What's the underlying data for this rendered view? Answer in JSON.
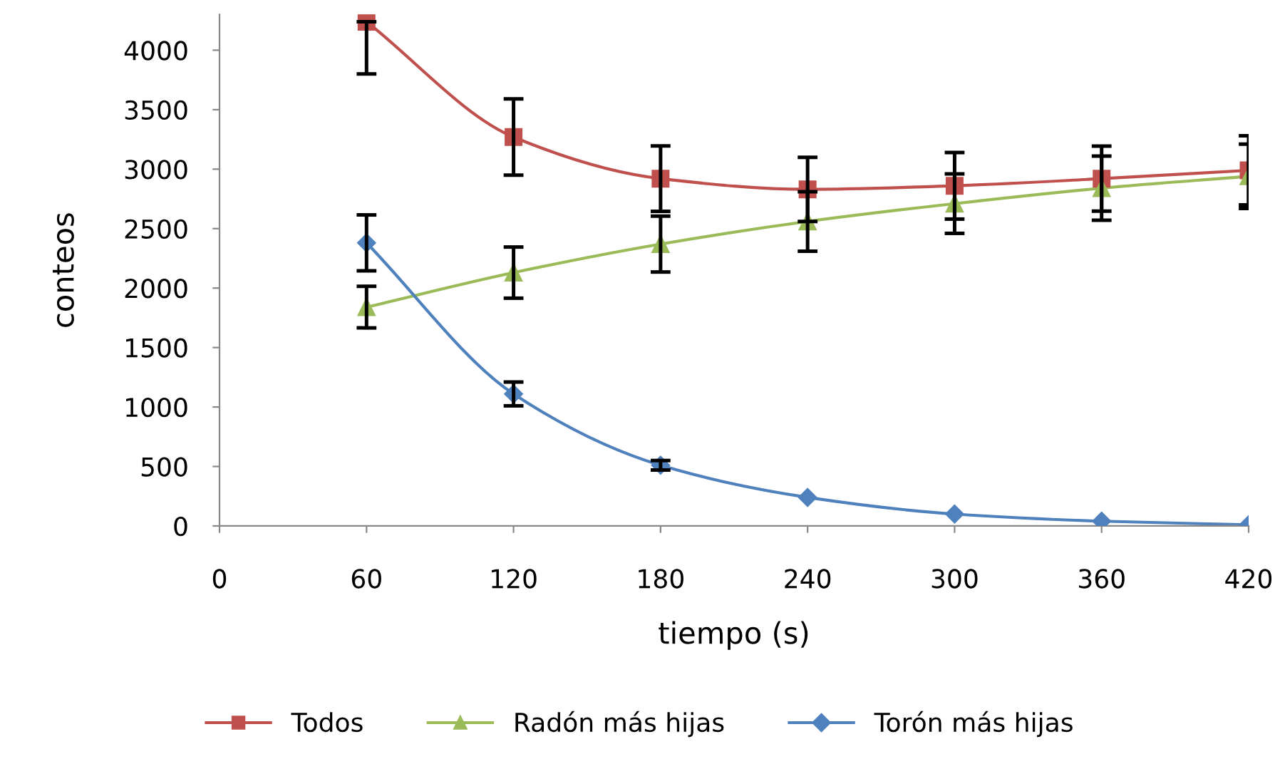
{
  "chart_data": {
    "type": "line",
    "xlabel": "tiempo (s)",
    "ylabel": "conteos",
    "x": [
      60,
      120,
      180,
      240,
      300,
      360,
      420
    ],
    "xlim": [
      0,
      420
    ],
    "xticks": [
      0,
      60,
      120,
      180,
      240,
      300,
      360,
      420
    ],
    "ylim": [
      0,
      4300
    ],
    "yticks": [
      0,
      500,
      1000,
      1500,
      2000,
      2500,
      3000,
      3500,
      4000
    ],
    "grid": false,
    "legend": "bottom",
    "series": [
      {
        "name": "Todos",
        "color": "#c0504d",
        "marker": "square",
        "values": [
          4240,
          3270,
          2920,
          2830,
          2860,
          2920,
          2990
        ],
        "errors": [
          [
            3800,
            4240
          ],
          320,
          275,
          270,
          280,
          273,
          290
        ]
      },
      {
        "name": "Radón más hijas",
        "color": "#9bbb59",
        "marker": "triangle",
        "values": [
          1840,
          2130,
          2370,
          2560,
          2710,
          2840,
          2940
        ],
        "errors": [
          175,
          215,
          235,
          250,
          250,
          270,
          270
        ]
      },
      {
        "name": "Torón más hijas",
        "color": "#4f81bd",
        "marker": "diamond",
        "values": [
          2380,
          1110,
          510,
          240,
          100,
          40,
          10
        ],
        "errors": [
          235,
          100,
          40,
          null,
          null,
          null,
          null
        ]
      }
    ]
  }
}
